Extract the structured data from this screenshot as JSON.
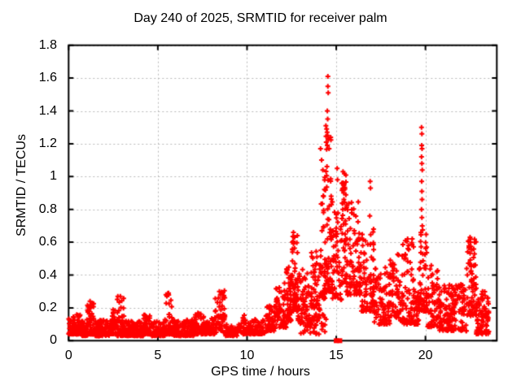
{
  "chart_data": {
    "type": "scatter",
    "title": "Day 240 of 2025, SRMTID for receiver palm",
    "xlabel": "GPS time / hours",
    "ylabel": "SRMTID / TECUs",
    "xlim": [
      0,
      24
    ],
    "ylim": [
      0,
      1.8
    ],
    "xtick_labels": [
      "0",
      "5",
      "10",
      "15",
      "20"
    ],
    "ytick_labels": [
      "0",
      "0.2",
      "0.4",
      "0.6",
      "0.8",
      "1",
      "1.2",
      "1.4",
      "1.6",
      "1.8"
    ],
    "grid": true,
    "legend": "none",
    "colors": {
      "marker": "#ff0000",
      "grid": "#b8b8b8",
      "axis": "#000000",
      "background": "#ffffff",
      "text": "#000000"
    },
    "seed": 11,
    "series": [
      {
        "name": "srmtid-points",
        "marker": "plus",
        "density_bands": [
          [
            0.0,
            0.7,
            0.04,
            0.16,
            90,
            2.0
          ],
          [
            0.7,
            1.05,
            0.03,
            0.13,
            45,
            2.0
          ],
          [
            1.05,
            1.5,
            0.04,
            0.24,
            60,
            2.2
          ],
          [
            1.5,
            2.3,
            0.03,
            0.13,
            95,
            2.0
          ],
          [
            2.3,
            2.7,
            0.04,
            0.19,
            45,
            2.0
          ],
          [
            2.7,
            3.1,
            0.03,
            0.27,
            50,
            2.4
          ],
          [
            3.1,
            4.2,
            0.03,
            0.12,
            115,
            2.0
          ],
          [
            4.2,
            4.6,
            0.04,
            0.16,
            45,
            2.0
          ],
          [
            4.6,
            5.4,
            0.03,
            0.12,
            85,
            2.0
          ],
          [
            5.4,
            5.8,
            0.04,
            0.29,
            45,
            2.4
          ],
          [
            5.8,
            7.0,
            0.03,
            0.13,
            115,
            2.0
          ],
          [
            7.0,
            7.6,
            0.04,
            0.17,
            60,
            2.0
          ],
          [
            7.6,
            8.2,
            0.04,
            0.15,
            60,
            2.0
          ],
          [
            8.2,
            8.8,
            0.05,
            0.31,
            55,
            1.8
          ],
          [
            8.8,
            9.6,
            0.03,
            0.1,
            70,
            1.8
          ],
          [
            9.6,
            10.2,
            0.04,
            0.16,
            45,
            2.0
          ],
          [
            10.2,
            11.0,
            0.04,
            0.13,
            70,
            2.0
          ],
          [
            11.0,
            11.6,
            0.06,
            0.22,
            55,
            1.8
          ],
          [
            11.6,
            12.2,
            0.08,
            0.33,
            60,
            1.7
          ],
          [
            12.2,
            12.5,
            0.12,
            0.45,
            50,
            1.6
          ],
          [
            12.5,
            12.85,
            0.18,
            0.65,
            55,
            1.5
          ],
          [
            12.85,
            13.6,
            0.1,
            0.45,
            70,
            1.6
          ],
          [
            13.6,
            14.1,
            0.12,
            0.55,
            60,
            1.5
          ],
          [
            13.0,
            14.45,
            0.04,
            0.16,
            35,
            1.5
          ],
          [
            14.1,
            14.4,
            0.25,
            1.0,
            45,
            1.9
          ],
          [
            14.4,
            14.75,
            0.3,
            1.26,
            55,
            1.8
          ],
          [
            14.75,
            15.3,
            0.25,
            0.85,
            60,
            1.7
          ],
          [
            15.3,
            15.55,
            0.35,
            1.02,
            45,
            1.6
          ],
          [
            15.55,
            16.4,
            0.28,
            0.85,
            95,
            1.7
          ],
          [
            16.4,
            17.1,
            0.18,
            0.68,
            75,
            1.8
          ],
          [
            17.1,
            18.0,
            0.1,
            0.45,
            85,
            1.8
          ],
          [
            18.0,
            18.6,
            0.14,
            0.55,
            60,
            1.8
          ],
          [
            18.6,
            19.35,
            0.1,
            0.62,
            75,
            1.8
          ],
          [
            19.35,
            19.65,
            0.1,
            0.32,
            40,
            1.8
          ],
          [
            19.65,
            20.1,
            0.18,
            0.68,
            60,
            1.6
          ],
          [
            20.1,
            20.7,
            0.08,
            0.46,
            60,
            1.8
          ],
          [
            20.7,
            22.3,
            0.06,
            0.35,
            160,
            1.9
          ],
          [
            22.3,
            22.85,
            0.15,
            0.63,
            70,
            1.3
          ],
          [
            22.85,
            23.55,
            0.04,
            0.3,
            75,
            1.8
          ]
        ],
        "peak_points": [
          [
            14.53,
            1.61
          ],
          [
            14.53,
            1.55
          ],
          [
            14.55,
            1.51
          ],
          [
            14.5,
            1.4
          ],
          [
            14.52,
            1.35
          ],
          [
            14.42,
            1.31
          ],
          [
            14.46,
            1.29
          ],
          [
            14.49,
            1.27
          ],
          [
            14.52,
            1.25
          ],
          [
            14.56,
            1.23
          ],
          [
            14.44,
            1.21
          ],
          [
            14.5,
            1.19
          ],
          [
            14.6,
            1.17
          ],
          [
            14.12,
            1.17
          ],
          [
            14.18,
            1.1
          ],
          [
            14.25,
            1.04
          ],
          [
            15.05,
            1.05
          ],
          [
            15.07,
            0.98
          ],
          [
            15.38,
            1.03
          ],
          [
            15.4,
            0.95
          ],
          [
            15.42,
            0.9
          ],
          [
            16.9,
            0.97
          ],
          [
            16.92,
            0.93
          ],
          [
            16.88,
            0.76
          ],
          [
            19.78,
            1.3
          ],
          [
            19.8,
            1.26
          ],
          [
            19.79,
            1.19
          ],
          [
            19.81,
            1.17
          ],
          [
            19.78,
            1.12
          ],
          [
            19.8,
            1.08
          ],
          [
            19.82,
            1.04
          ],
          [
            19.79,
            0.97
          ],
          [
            19.8,
            0.91
          ],
          [
            19.81,
            0.86
          ],
          [
            19.78,
            0.8
          ],
          [
            19.8,
            0.75
          ],
          [
            19.82,
            0.7
          ],
          [
            8.45,
            0.3
          ],
          [
            8.5,
            0.28
          ],
          [
            8.4,
            0.26
          ],
          [
            2.9,
            0.27
          ],
          [
            5.6,
            0.29
          ],
          [
            1.2,
            0.24
          ],
          [
            12.1,
            0.35
          ],
          [
            12.6,
            0.66
          ],
          [
            12.65,
            0.63
          ],
          [
            12.55,
            0.6
          ],
          [
            22.5,
            0.63
          ],
          [
            22.53,
            0.6
          ],
          [
            22.47,
            0.57
          ],
          [
            19.0,
            0.62
          ],
          [
            19.05,
            0.58
          ],
          [
            23.2,
            0.3
          ]
        ]
      },
      {
        "name": "flagged-points",
        "marker": "filled-square",
        "points": [
          [
            15.0,
            0
          ],
          [
            15.2,
            0
          ]
        ]
      }
    ]
  }
}
